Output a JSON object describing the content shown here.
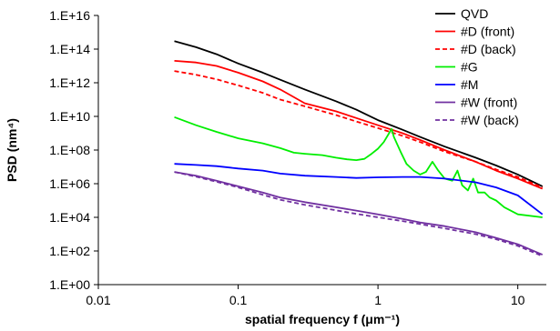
{
  "chart_data": {
    "type": "line",
    "title": "",
    "xlabel": "spatial frequency f (μm⁻¹)",
    "ylabel": "PSD (nm⁴)",
    "xscale": "log",
    "yscale": "log",
    "xlim": [
      0.01,
      16
    ],
    "ylim": [
      1,
      1e+16
    ],
    "xticks": [
      0.01,
      0.1,
      1,
      10
    ],
    "xtick_labels": [
      "0.01",
      "0.1",
      "1",
      "10"
    ],
    "yticks": [
      1,
      100,
      10000,
      1000000,
      100000000,
      10000000000,
      1000000000000,
      100000000000000,
      10000000000000000
    ],
    "ytick_labels": [
      "1.E+00",
      "1.E+02",
      "1.E+04",
      "1.E+06",
      "1.E+08",
      "1.E+10",
      "1.E+12",
      "1.E+14",
      "1.E+16"
    ],
    "grid": false,
    "legend_position": "top-right",
    "series": [
      {
        "name": "QVD",
        "color": "#000000",
        "dash": "solid",
        "x": [
          0.035,
          0.05,
          0.07,
          0.1,
          0.15,
          0.2,
          0.3,
          0.5,
          0.7,
          1,
          1.5,
          2,
          3,
          5,
          7,
          10,
          15
        ],
        "y": [
          300000000000000.0,
          130000000000000.0,
          50000000000000.0,
          14000000000000.0,
          4000000000000.0,
          1500000000000.0,
          400000000000.0,
          80000000000.0,
          25000000000.0,
          6000000000.0,
          1600000000.0,
          600000000.0,
          160000000.0,
          35000000.0,
          12000000.0,
          3500000.0,
          700000.0
        ]
      },
      {
        "name": "#D (front)",
        "color": "#ff0000",
        "dash": "solid",
        "x": [
          0.035,
          0.05,
          0.07,
          0.1,
          0.15,
          0.2,
          0.3,
          0.5,
          0.7,
          1,
          1.5,
          2,
          3,
          5,
          7,
          10,
          15
        ],
        "y": [
          20000000000000.0,
          16000000000000.0,
          10000000000000.0,
          4000000000000.0,
          1200000000000.0,
          400000000000.0,
          60000000000.0,
          20000000000.0,
          8000000000.0,
          3000000000.0,
          1000000000.0,
          400000000.0,
          100000000.0,
          20000000.0,
          6000000.0,
          2000000.0,
          500000.0
        ]
      },
      {
        "name": "#D (back)",
        "color": "#ff0000",
        "dash": "dashed",
        "x": [
          0.035,
          0.05,
          0.07,
          0.1,
          0.15,
          0.2,
          0.3,
          0.5,
          0.7,
          1,
          1.5,
          2,
          3,
          5,
          7,
          10,
          15
        ],
        "y": [
          5000000000000.0,
          3000000000000.0,
          1600000000000.0,
          700000000000.0,
          250000000000.0,
          100000000000.0,
          40000000000.0,
          12000000000.0,
          5000000000.0,
          2000000000.0,
          700000000.0,
          300000000.0,
          80000000.0,
          20000000.0,
          7000000.0,
          2500000.0,
          600000.0
        ]
      },
      {
        "name": "#G",
        "color": "#00ee00",
        "dash": "solid",
        "x": [
          0.035,
          0.05,
          0.07,
          0.1,
          0.15,
          0.2,
          0.25,
          0.3,
          0.4,
          0.5,
          0.6,
          0.7,
          0.8,
          0.9,
          1.0,
          1.1,
          1.2,
          1.25,
          1.3,
          1.45,
          1.6,
          1.8,
          2.0,
          2.2,
          2.45,
          2.7,
          3.0,
          3.4,
          3.7,
          4.0,
          4.4,
          4.8,
          5.2,
          5.8,
          6.3,
          7.0,
          8.0,
          10,
          15
        ],
        "y": [
          9000000000.0,
          3000000000.0,
          1200000000.0,
          500000000.0,
          250000000.0,
          130000000.0,
          70000000.0,
          60000000.0,
          50000000.0,
          35000000.0,
          28000000.0,
          25000000.0,
          30000000.0,
          60000000.0,
          120000000.0,
          300000000.0,
          1000000000.0,
          1800000000.0,
          600000000.0,
          80000000.0,
          15000000.0,
          6000000.0,
          3500000.0,
          5000000.0,
          20000000.0,
          6000000.0,
          2000000.0,
          1500000.0,
          6000000.0,
          800000.0,
          400000.0,
          2000000.0,
          300000.0,
          300000.0,
          150000.0,
          100000.0,
          40000.0,
          15000.0,
          10000.0
        ]
      },
      {
        "name": "#M",
        "color": "#0000ff",
        "dash": "solid",
        "x": [
          0.035,
          0.05,
          0.07,
          0.1,
          0.15,
          0.2,
          0.3,
          0.5,
          0.7,
          1,
          1.5,
          2,
          3,
          5,
          7,
          10,
          15
        ],
        "y": [
          15000000.0,
          13000000.0,
          11000000.0,
          8000000.0,
          6000000.0,
          4000000.0,
          3000000.0,
          2500000.0,
          2200000.0,
          2400000.0,
          2500000.0,
          2500000.0,
          2000000.0,
          1200000.0,
          600000.0,
          200000.0,
          15000.0
        ]
      },
      {
        "name": "#W (front)",
        "color": "#7030a0",
        "dash": "solid",
        "x": [
          0.035,
          0.05,
          0.07,
          0.1,
          0.15,
          0.2,
          0.3,
          0.5,
          0.7,
          1,
          1.5,
          2,
          3,
          5,
          7,
          10,
          15
        ],
        "y": [
          5000000.0,
          3000000.0,
          1500000.0,
          700000.0,
          300000.0,
          150000.0,
          80000.0,
          40000.0,
          25000.0,
          15000.0,
          8000.0,
          5000.0,
          3000.0,
          1300.0,
          600.0,
          250.0,
          60
        ]
      },
      {
        "name": "#W (back)",
        "color": "#7030a0",
        "dash": "dashed",
        "x": [
          0.035,
          0.05,
          0.07,
          0.1,
          0.15,
          0.2,
          0.3,
          0.5,
          0.7,
          1,
          1.5,
          2,
          3,
          5,
          7,
          10,
          15
        ],
        "y": [
          5000000.0,
          2600000.0,
          1300000.0,
          600000.0,
          220000.0,
          110000.0,
          55000.0,
          26000.0,
          16000.0,
          10000.0,
          6000.0,
          4000.0,
          2200.0,
          1000.0,
          500.0,
          200.0,
          50
        ]
      }
    ]
  }
}
